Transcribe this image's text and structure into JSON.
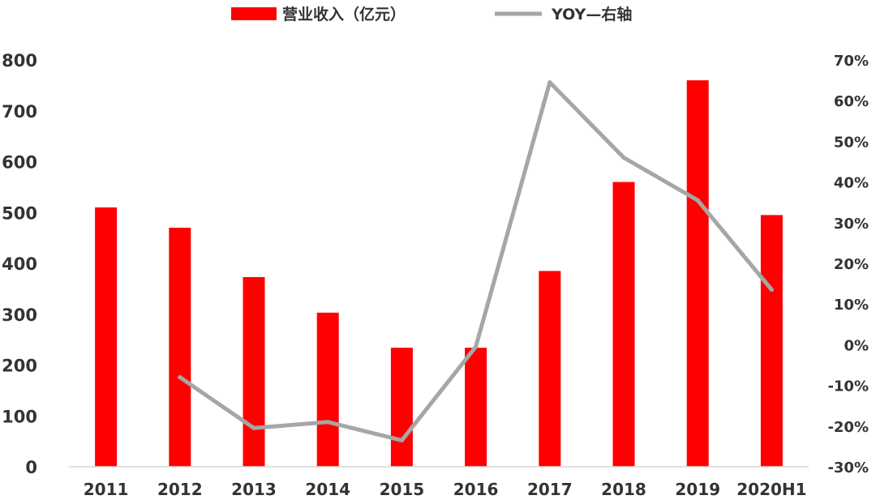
{
  "chart_data": {
    "type": "bar",
    "categories": [
      "2011",
      "2012",
      "2013",
      "2014",
      "2015",
      "2016",
      "2017",
      "2018",
      "2019",
      "2020H1"
    ],
    "series": [
      {
        "name": "营业收入（亿元）",
        "type": "bar",
        "axis": "left",
        "color": "#ff0000",
        "values": [
          510,
          470,
          373,
          303,
          234,
          234,
          385,
          560,
          760,
          495
        ]
      },
      {
        "name": "YOY—右轴",
        "type": "line",
        "axis": "right",
        "color": "#a6a6a6",
        "values": [
          null,
          -8,
          -20.5,
          -19,
          -23.5,
          -0.5,
          64.5,
          46,
          35.5,
          13.5
        ]
      }
    ],
    "y_left": {
      "min": 0,
      "max": 800,
      "ticks": [
        "0",
        "100",
        "200",
        "300",
        "400",
        "500",
        "600",
        "700",
        "800"
      ]
    },
    "y_right": {
      "min": -30,
      "max": 70,
      "ticks": [
        "-30%",
        "-20%",
        "-10%",
        "0%",
        "10%",
        "20%",
        "30%",
        "40%",
        "50%",
        "60%",
        "70%"
      ]
    },
    "legend_position": "top-center",
    "grid": false
  }
}
